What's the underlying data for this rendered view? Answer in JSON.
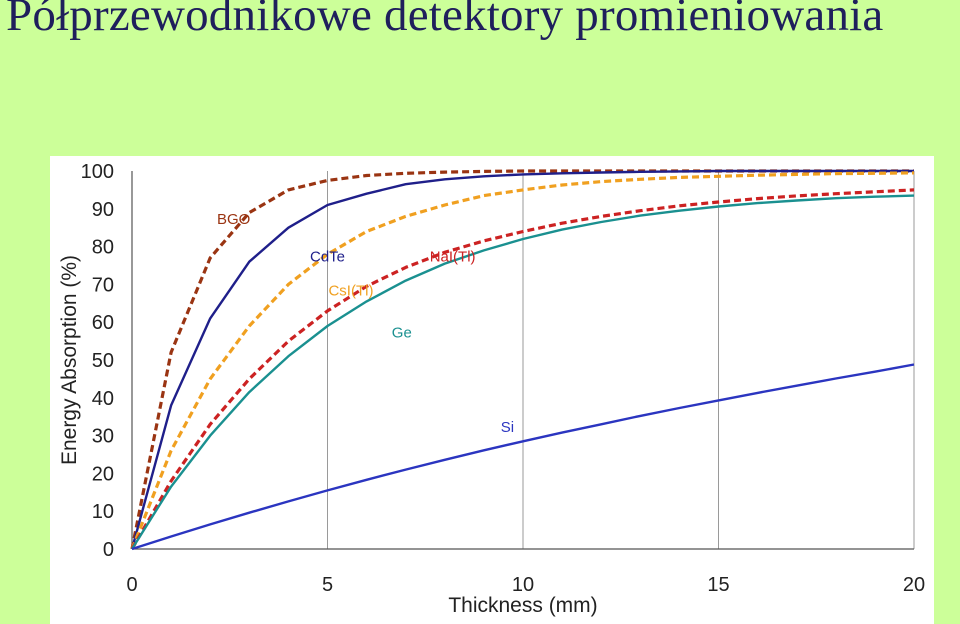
{
  "slide": {
    "title": "Półprzewodnikowe detektory promieniowania"
  },
  "chart_data": {
    "type": "line",
    "title": "",
    "xlabel": "Thickness (mm)",
    "ylabel": "Energy Absorption (%)",
    "xlim": [
      0,
      20
    ],
    "ylim": [
      0,
      100
    ],
    "x_ticks": [
      0,
      5,
      10,
      15,
      20
    ],
    "y_ticks": [
      0,
      10,
      20,
      30,
      40,
      50,
      60,
      70,
      80,
      90,
      100
    ],
    "grid": "vertical",
    "legend": "inline labels",
    "x": [
      0,
      1,
      2,
      3,
      4,
      5,
      6,
      7,
      8,
      9,
      10,
      11,
      12,
      13,
      14,
      15,
      16,
      17,
      18,
      19,
      20
    ],
    "series": [
      {
        "name": "BGO",
        "color": "#9a3412",
        "style": "dashed",
        "values": [
          0,
          52,
          77,
          89,
          95,
          97.5,
          98.8,
          99.4,
          99.7,
          99.9,
          100,
          100,
          100,
          100,
          100,
          100,
          100,
          100,
          100,
          100,
          100
        ]
      },
      {
        "name": "CdTe",
        "color": "#1f1f8a",
        "style": "solid",
        "values": [
          0,
          38,
          61,
          76,
          85,
          91,
          94,
          96.5,
          97.8,
          98.6,
          99.1,
          99.4,
          99.6,
          99.8,
          99.9,
          100,
          100,
          100,
          100,
          100,
          100
        ]
      },
      {
        "name": "CsI(Tl)",
        "color": "#f0a020",
        "style": "dashed",
        "values": [
          0,
          26,
          45,
          59,
          70,
          78,
          84,
          88,
          91,
          93.5,
          95,
          96.3,
          97.2,
          97.8,
          98.3,
          98.6,
          98.9,
          99.1,
          99.3,
          99.4,
          99.5
        ]
      },
      {
        "name": "NaI(Tl)",
        "color": "#cc2222",
        "style": "dashed",
        "values": [
          0,
          18,
          33,
          45,
          55,
          63,
          69.5,
          74.5,
          78.5,
          81.5,
          84,
          86.2,
          88,
          89.5,
          90.8,
          91.8,
          92.7,
          93.4,
          94,
          94.5,
          95
        ]
      },
      {
        "name": "Ge",
        "color": "#1a9090",
        "style": "solid",
        "values": [
          0,
          16.5,
          30,
          41.5,
          51,
          59,
          65.5,
          71,
          75.5,
          79,
          82,
          84.5,
          86.5,
          88.2,
          89.5,
          90.6,
          91.5,
          92.2,
          92.8,
          93.2,
          93.5
        ]
      },
      {
        "name": "Si",
        "color": "#2b35c0",
        "style": "solid",
        "values": [
          0,
          3.3,
          6.5,
          9.6,
          12.6,
          15.5,
          18.3,
          21,
          23.6,
          26.1,
          28.5,
          30.8,
          33,
          35.2,
          37.3,
          39.3,
          41.3,
          43.2,
          45.1,
          46.9,
          48.8
        ]
      }
    ],
    "label_positions": [
      {
        "name": "BGO",
        "x": 2.6,
        "y": 86
      },
      {
        "name": "CdTe",
        "x": 5.0,
        "y": 76
      },
      {
        "name": "CsI(Tl)",
        "x": 5.6,
        "y": 67
      },
      {
        "name": "NaI(Tl)",
        "x": 8.2,
        "y": 76
      },
      {
        "name": "Ge",
        "x": 6.9,
        "y": 56
      },
      {
        "name": "Si",
        "x": 9.6,
        "y": 31
      }
    ]
  }
}
